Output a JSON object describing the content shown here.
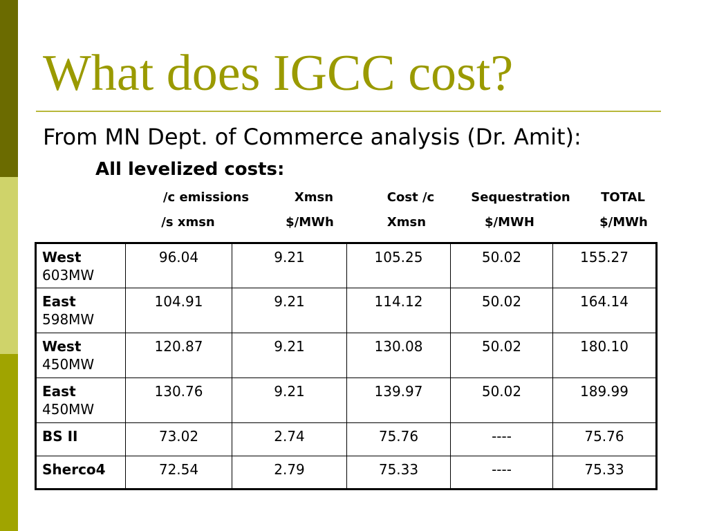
{
  "slide": {
    "title": "What does IGCC cost?",
    "subtitle": "From MN Dept. of Commerce analysis (Dr. Amit):",
    "note": "All levelized costs:",
    "colors": {
      "title": "#9a9a00",
      "rule": "#b8b83a",
      "bar_top": "#6b6b00",
      "bar_middle": "#cfd36a",
      "bar_bottom": "#a0a400"
    }
  },
  "table": {
    "header_row1": [
      "/c emissions",
      "Xmsn",
      "Cost /c",
      "Sequestration",
      "TOTAL"
    ],
    "header_row2": [
      "/s xmsn",
      "$/MWh",
      "Xmsn",
      "$/MWH",
      "$/MWh"
    ],
    "rows": [
      {
        "name": "West",
        "capacity": "603MW",
        "values": [
          "96.04",
          "9.21",
          "105.25",
          "50.02",
          "155.27"
        ]
      },
      {
        "name": "East",
        "capacity": "598MW",
        "values": [
          "104.91",
          "9.21",
          "114.12",
          "50.02",
          "164.14"
        ]
      },
      {
        "name": "West",
        "capacity": "450MW",
        "values": [
          "120.87",
          "9.21",
          "130.08",
          "50.02",
          "180.10"
        ]
      },
      {
        "name": "East",
        "capacity": "450MW",
        "values": [
          "130.76",
          "9.21",
          "139.97",
          "50.02",
          "189.99"
        ]
      },
      {
        "name": "BS II",
        "capacity": "",
        "values": [
          "73.02",
          "2.74",
          "75.76",
          "----",
          "75.76"
        ]
      },
      {
        "name": "Sherco4",
        "capacity": "",
        "values": [
          "72.54",
          "2.79",
          "75.33",
          "----",
          "75.33"
        ]
      }
    ]
  }
}
